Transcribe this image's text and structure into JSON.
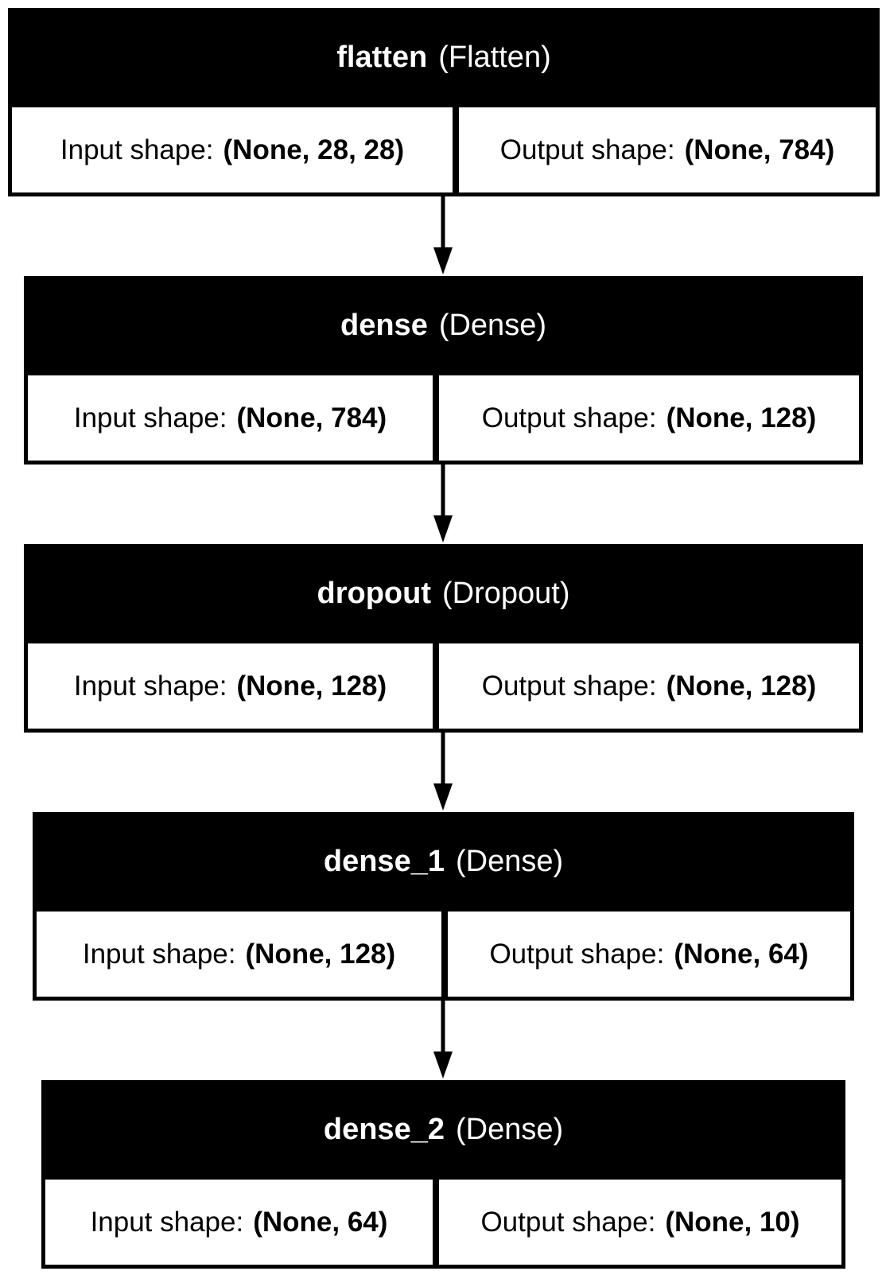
{
  "layers": [
    {
      "name": "flatten",
      "type": "(Flatten)",
      "input_label": "Input shape:",
      "input_value": "(None, 28, 28)",
      "output_label": "Output shape:",
      "output_value": "(None, 784)"
    },
    {
      "name": "dense",
      "type": "(Dense)",
      "input_label": "Input shape:",
      "input_value": "(None, 784)",
      "output_label": "Output shape:",
      "output_value": "(None, 128)"
    },
    {
      "name": "dropout",
      "type": "(Dropout)",
      "input_label": "Input shape:",
      "input_value": "(None, 128)",
      "output_label": "Output shape:",
      "output_value": "(None, 128)"
    },
    {
      "name": "dense_1",
      "type": "(Dense)",
      "input_label": "Input shape:",
      "input_value": "(None, 128)",
      "output_label": "Output shape:",
      "output_value": "(None, 64)"
    },
    {
      "name": "dense_2",
      "type": "(Dense)",
      "input_label": "Input shape:",
      "input_value": "(None, 64)",
      "output_label": "Output shape:",
      "output_value": "(None, 10)"
    }
  ]
}
